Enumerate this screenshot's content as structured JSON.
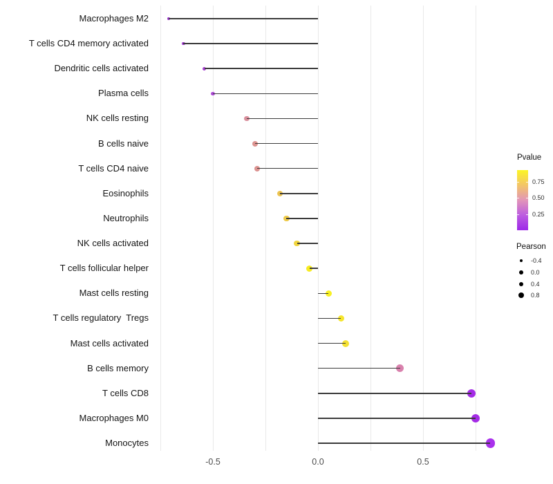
{
  "chart_data": {
    "type": "lollipop",
    "title": "",
    "xlabel": "",
    "ylabel": "",
    "xlim": [
      -0.85,
      0.92
    ],
    "grid": "vertical-only",
    "gridlines": [
      -0.75,
      -0.5,
      -0.25,
      0.0,
      0.25,
      0.5,
      0.75
    ],
    "x_ticks": [
      -0.5,
      0.0,
      0.5
    ],
    "x_tick_labels": [
      "-0.5",
      "0.0",
      "0.5"
    ],
    "stem_color": "#3a3a3a",
    "points": [
      {
        "label": "Macrophages M2",
        "pearson": -0.71,
        "dot_diameter": 4.0,
        "color": "#9c32d1"
      },
      {
        "label": "T cells CD4 memory activated",
        "pearson": -0.64,
        "dot_diameter": 4.6,
        "color": "#a23ad1"
      },
      {
        "label": "Dendritic cells activated",
        "pearson": -0.54,
        "dot_diameter": 5.2,
        "color": "#a840d3"
      },
      {
        "label": "Plasma cells",
        "pearson": -0.5,
        "dot_diameter": 5.6,
        "color": "#ae4ad7"
      },
      {
        "label": "NK cells resting",
        "pearson": -0.34,
        "dot_diameter": 7.8,
        "color": "#d98f9c"
      },
      {
        "label": "B cells naive",
        "pearson": -0.3,
        "dot_diameter": 8.0,
        "color": "#dc9390"
      },
      {
        "label": "T cells CD4 naive",
        "pearson": -0.29,
        "dot_diameter": 8.0,
        "color": "#dc9290"
      },
      {
        "label": "Eosinophils",
        "pearson": -0.18,
        "dot_diameter": 8.4,
        "color": "#ecc452"
      },
      {
        "label": "Neutrophils",
        "pearson": -0.15,
        "dot_diameter": 8.6,
        "color": "#eeca49"
      },
      {
        "label": "NK cells activated",
        "pearson": -0.1,
        "dot_diameter": 8.8,
        "color": "#f1d53e"
      },
      {
        "label": "T cells follicular helper",
        "pearson": -0.04,
        "dot_diameter": 9.0,
        "color": "#f7eb21"
      },
      {
        "label": "Mast cells resting",
        "pearson": 0.05,
        "dot_diameter": 9.4,
        "color": "#f8f022"
      },
      {
        "label": "T cells regulatory  Tregs",
        "pearson": 0.11,
        "dot_diameter": 9.8,
        "color": "#f5e52c"
      },
      {
        "label": "Mast cells activated",
        "pearson": 0.13,
        "dot_diameter": 10.0,
        "color": "#f3e032"
      },
      {
        "label": "B cells memory",
        "pearson": 0.39,
        "dot_diameter": 11.0,
        "color": "#d981ad"
      },
      {
        "label": "T cells CD8",
        "pearson": 0.73,
        "dot_diameter": 12.6,
        "color": "#a42be6"
      },
      {
        "label": "Macrophages M0",
        "pearson": 0.75,
        "dot_diameter": 12.8,
        "color": "#a42be6"
      },
      {
        "label": "Monocytes",
        "pearson": 0.82,
        "dot_diameter": 13.4,
        "color": "#a930ec"
      }
    ],
    "legend_pvalue": {
      "title": "Pvalue",
      "tick_labels": [
        "0.75",
        "0.50",
        "0.25"
      ],
      "gradient_colors": [
        "#fcf524",
        "#f3c567",
        "#e295b8",
        "#bc5ce0",
        "#9d28e8"
      ]
    },
    "legend_pearson": {
      "title": "Pearson",
      "items": [
        {
          "label": "-0.4",
          "dot_diameter": 4.6
        },
        {
          "label": "0.0",
          "dot_diameter": 5.8
        },
        {
          "label": "0.4",
          "dot_diameter": 6.9
        },
        {
          "label": "0.8",
          "dot_diameter": 7.9
        }
      ]
    }
  }
}
